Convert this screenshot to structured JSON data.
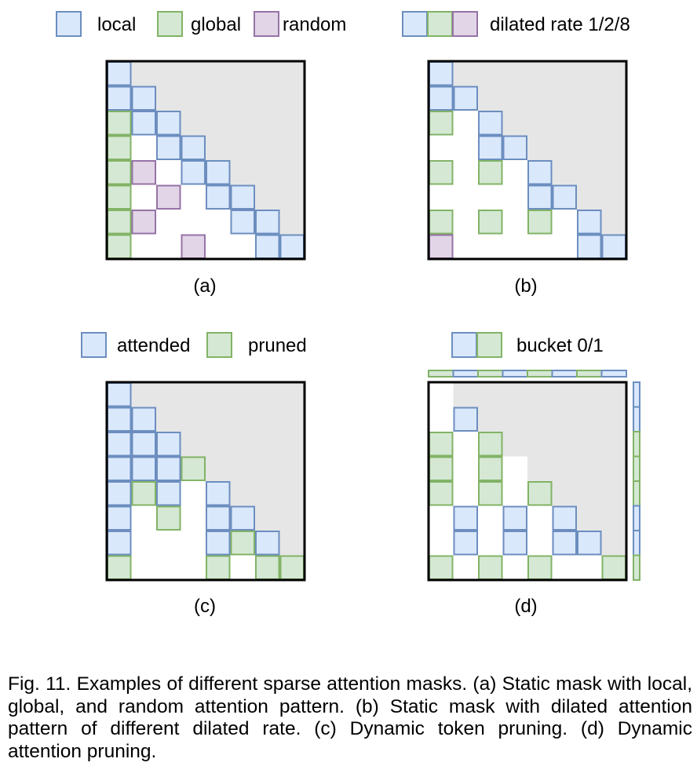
{
  "colors": {
    "local_fill": "#dae8fc",
    "local_stroke": "#6c8ebf",
    "global_fill": "#d5e8d4",
    "global_stroke": "#82b366",
    "random_fill": "#e1d5e7",
    "random_stroke": "#9673a6",
    "masked_fill": "#e6e6e6",
    "frame": "#000000"
  },
  "legend_a": {
    "local": "local",
    "global": "global",
    "random": "random"
  },
  "legend_b": {
    "dilated": "dilated rate 1/2/8"
  },
  "legend_c": {
    "attended": "attended",
    "pruned": "pruned"
  },
  "legend_d": {
    "bucket": "bucket 0/1"
  },
  "panels": {
    "a": {
      "label": "(a)",
      "cells": [
        [
          0,
          0,
          "local"
        ],
        [
          1,
          0,
          "local"
        ],
        [
          1,
          1,
          "local"
        ],
        [
          2,
          0,
          "global"
        ],
        [
          2,
          1,
          "local"
        ],
        [
          2,
          2,
          "local"
        ],
        [
          3,
          0,
          "global"
        ],
        [
          3,
          2,
          "local"
        ],
        [
          3,
          3,
          "local"
        ],
        [
          4,
          0,
          "global"
        ],
        [
          4,
          1,
          "random"
        ],
        [
          4,
          3,
          "local"
        ],
        [
          4,
          4,
          "local"
        ],
        [
          5,
          0,
          "global"
        ],
        [
          5,
          2,
          "random"
        ],
        [
          5,
          4,
          "local"
        ],
        [
          5,
          5,
          "local"
        ],
        [
          6,
          0,
          "global"
        ],
        [
          6,
          1,
          "random"
        ],
        [
          6,
          5,
          "local"
        ],
        [
          6,
          6,
          "local"
        ],
        [
          7,
          0,
          "global"
        ],
        [
          7,
          3,
          "random"
        ],
        [
          7,
          6,
          "local"
        ],
        [
          7,
          7,
          "local"
        ]
      ]
    },
    "b": {
      "label": "(b)",
      "cells": [
        [
          0,
          0,
          "local"
        ],
        [
          1,
          0,
          "local"
        ],
        [
          1,
          1,
          "local"
        ],
        [
          2,
          0,
          "global"
        ],
        [
          2,
          2,
          "local"
        ],
        [
          3,
          2,
          "local"
        ],
        [
          3,
          3,
          "local"
        ],
        [
          4,
          0,
          "global"
        ],
        [
          4,
          2,
          "global"
        ],
        [
          4,
          4,
          "local"
        ],
        [
          5,
          4,
          "local"
        ],
        [
          5,
          5,
          "local"
        ],
        [
          6,
          0,
          "global"
        ],
        [
          6,
          2,
          "global"
        ],
        [
          6,
          4,
          "global"
        ],
        [
          6,
          6,
          "local"
        ],
        [
          7,
          0,
          "random"
        ],
        [
          7,
          6,
          "local"
        ],
        [
          7,
          7,
          "local"
        ]
      ]
    },
    "c": {
      "label": "(c)",
      "cells": [
        [
          0,
          0,
          "local"
        ],
        [
          1,
          0,
          "local"
        ],
        [
          1,
          1,
          "local"
        ],
        [
          2,
          0,
          "local"
        ],
        [
          2,
          1,
          "local"
        ],
        [
          2,
          2,
          "local"
        ],
        [
          3,
          0,
          "local"
        ],
        [
          3,
          1,
          "local"
        ],
        [
          3,
          2,
          "local"
        ],
        [
          3,
          3,
          "global"
        ],
        [
          4,
          0,
          "local"
        ],
        [
          4,
          1,
          "global"
        ],
        [
          4,
          2,
          "local"
        ],
        [
          4,
          4,
          "local"
        ],
        [
          5,
          0,
          "local"
        ],
        [
          5,
          2,
          "global"
        ],
        [
          5,
          4,
          "local"
        ],
        [
          5,
          5,
          "local"
        ],
        [
          6,
          0,
          "local"
        ],
        [
          6,
          4,
          "local"
        ],
        [
          6,
          5,
          "global"
        ],
        [
          6,
          6,
          "local"
        ],
        [
          7,
          0,
          "global"
        ],
        [
          7,
          4,
          "global"
        ],
        [
          7,
          6,
          "global"
        ],
        [
          7,
          7,
          "global"
        ]
      ]
    },
    "d": {
      "label": "(d)",
      "cells": [
        [
          1,
          1,
          "local"
        ],
        [
          2,
          0,
          "global"
        ],
        [
          2,
          2,
          "global"
        ],
        [
          3,
          0,
          "global"
        ],
        [
          3,
          2,
          "global"
        ],
        [
          4,
          0,
          "global"
        ],
        [
          4,
          2,
          "global"
        ],
        [
          4,
          4,
          "global"
        ],
        [
          5,
          1,
          "local"
        ],
        [
          5,
          3,
          "local"
        ],
        [
          5,
          5,
          "local"
        ],
        [
          6,
          1,
          "local"
        ],
        [
          6,
          3,
          "local"
        ],
        [
          6,
          5,
          "local"
        ],
        [
          6,
          6,
          "local"
        ],
        [
          7,
          0,
          "global"
        ],
        [
          7,
          2,
          "global"
        ],
        [
          7,
          4,
          "global"
        ],
        [
          7,
          7,
          "global"
        ]
      ],
      "white_upper": [
        [
          0,
          0
        ],
        [
          3,
          3
        ]
      ],
      "col_buckets": [
        "global",
        "local",
        "global",
        "local",
        "global",
        "local",
        "global",
        "local"
      ],
      "row_buckets": [
        "local",
        "local",
        "global",
        "global",
        "global",
        "local",
        "local",
        "global"
      ]
    }
  },
  "caption": "Fig. 11. Examples of different sparse attention masks. (a) Static mask with local, global, and random attention pattern. (b) Static mask with dilated attention pattern of different dilated rate. (c) Dynamic token pruning. (d) Dynamic attention pruning."
}
